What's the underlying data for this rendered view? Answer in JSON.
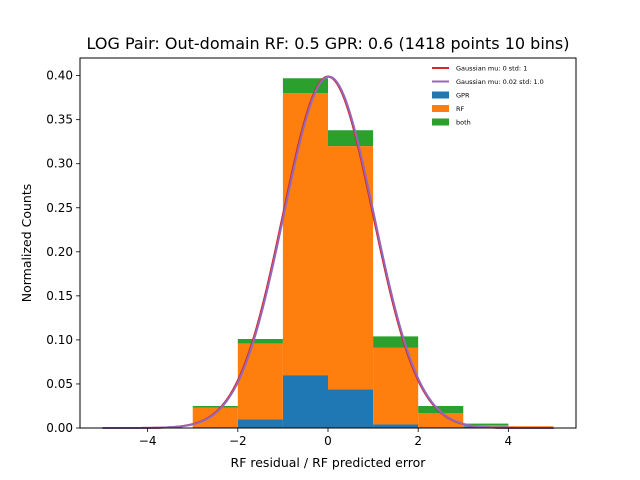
{
  "chart_data": {
    "type": "bar",
    "title": "LOG Pair: Out-domain RF: 0.5 GPR: 0.6 (1418 points 10 bins)",
    "xlabel": "RF residual / RF predicted error",
    "ylabel": "Normalized Counts",
    "xlim": [
      -5.5,
      5.5
    ],
    "ylim": [
      0,
      0.42
    ],
    "xticks": [
      -4,
      -2,
      0,
      2,
      4
    ],
    "xtick_labels": [
      "−4",
      "−2",
      "0",
      "2",
      "4"
    ],
    "yticks": [
      0,
      0.05,
      0.1,
      0.15,
      0.2,
      0.25,
      0.3,
      0.35,
      0.4
    ],
    "ytick_labels": [
      "0.00",
      "0.05",
      "0.10",
      "0.15",
      "0.20",
      "0.25",
      "0.30",
      "0.35",
      "0.40"
    ],
    "bin_edges": [
      -5,
      -4,
      -3,
      -2,
      -1,
      0,
      1,
      2,
      3,
      4,
      5
    ],
    "stacked": true,
    "series": [
      {
        "name": "GPR",
        "color": "#1f77b4",
        "values": [
          0,
          0,
          0.001,
          0.01,
          0.06,
          0.044,
          0.004,
          0.001,
          0.002,
          0
        ]
      },
      {
        "name": "RF",
        "color": "#ff7f0e",
        "values": [
          0,
          0,
          0.022,
          0.086,
          0.32,
          0.276,
          0.087,
          0.016,
          0.001,
          0.002
        ]
      },
      {
        "name": "both",
        "color": "#2ca02c",
        "values": [
          0,
          0,
          0.002,
          0.005,
          0.017,
          0.018,
          0.013,
          0.008,
          0.002,
          0
        ]
      }
    ],
    "curves": [
      {
        "name": "Gaussian mu: 0 std: 1",
        "color": "#d62728",
        "mu": 0,
        "std": 1,
        "x_range": [
          -5,
          5
        ]
      },
      {
        "name": "Gaussian mu: 0.02 std: 1.0",
        "color": "#9467bd",
        "mu": 0.02,
        "std": 1.0,
        "x_range": [
          -5,
          5
        ]
      }
    ],
    "legend": {
      "position": "top-right",
      "entries": [
        "Gaussian mu: 0 std: 1",
        "Gaussian mu: 0.02 std: 1.0",
        "GPR",
        "RF",
        "both"
      ]
    }
  }
}
